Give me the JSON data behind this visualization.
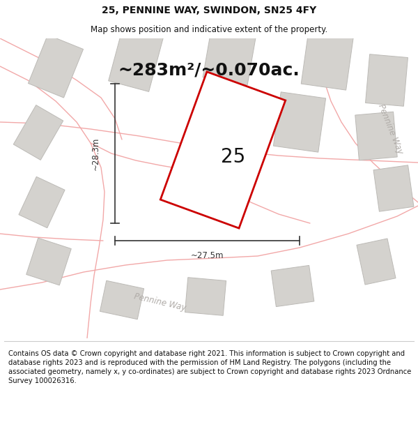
{
  "title": "25, PENNINE WAY, SWINDON, SN25 4FY",
  "subtitle": "Map shows position and indicative extent of the property.",
  "area_text": "~283m²/~0.070ac.",
  "number_label": "25",
  "dim_width": "~27.5m",
  "dim_height": "~28.3m",
  "road_label_bottom": "Pennine Way",
  "road_label_right": "Pennine Way",
  "footer": "Contains OS data © Crown copyright and database right 2021. This information is subject to Crown copyright and database rights 2023 and is reproduced with the permission of HM Land Registry. The polygons (including the associated geometry, namely x, y co-ordinates) are subject to Crown copyright and database rights 2023 Ordnance Survey 100026316.",
  "bg_color": "#ebe9e5",
  "plot_fill": "#ffffff",
  "plot_outline": "#cc0000",
  "building_fill": "#d4d2ce",
  "building_outline": "#bcbab6",
  "road_color": "#f2a8a8",
  "road_label_color": "#b0aca8",
  "dim_color": "#333333",
  "text_color": "#111111",
  "footer_color": "#111111",
  "footer_fontsize": 7.2,
  "title_fontsize": 10,
  "subtitle_fontsize": 8.5,
  "area_fontsize": 18,
  "number_fontsize": 20,
  "dim_fontsize": 8.5
}
